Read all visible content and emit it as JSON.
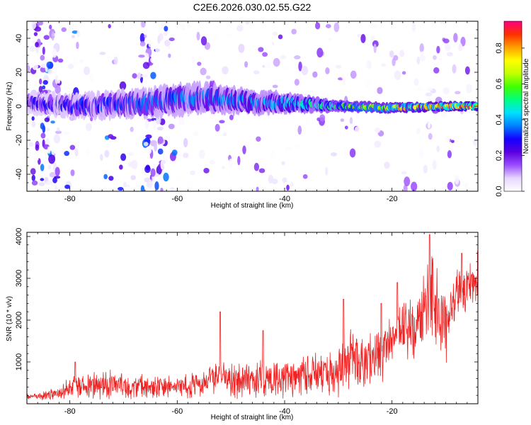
{
  "title": "C2E6.2026.030.02.55.G22",
  "chart_data": [
    {
      "type": "heatmap",
      "xlabel": "Height of straight line (km)",
      "ylabel": "Frequency (Hz)",
      "xlim": [
        -88,
        -4
      ],
      "ylim": [
        -50,
        50
      ],
      "xticks": [
        -80,
        -60,
        -40,
        -20
      ],
      "yticks": [
        -40,
        -20,
        0,
        20,
        40
      ],
      "colorbar": {
        "label": "Normalized spectral amplitude",
        "range": [
          0,
          0.95
        ],
        "ticks": [
          0.0,
          0.2,
          0.4,
          0.6,
          0.8
        ],
        "colormap": [
          "#ffffff",
          "#e6d6ff",
          "#9b4dff",
          "#5a00e0",
          "#1500ff",
          "#0080ff",
          "#00e0ff",
          "#00ff80",
          "#40ff00",
          "#c0ff00",
          "#ffff00",
          "#ffa000",
          "#ff3000",
          "#ff0080"
        ]
      },
      "ridge": {
        "center_hz": [
          [
            -88,
            2
          ],
          [
            -80,
            0
          ],
          [
            -70,
            1
          ],
          [
            -63,
            3
          ],
          [
            -55,
            5
          ],
          [
            -45,
            2
          ],
          [
            -40,
            2
          ],
          [
            -30,
            0
          ],
          [
            -20,
            -1
          ],
          [
            -10,
            0
          ],
          [
            -4,
            0
          ]
        ],
        "half_width_hz": [
          [
            -88,
            4
          ],
          [
            -60,
            6
          ],
          [
            -40,
            4
          ],
          [
            -30,
            2
          ],
          [
            -4,
            1.5
          ]
        ],
        "amplitude": [
          [
            -88,
            0.3
          ],
          [
            -60,
            0.4
          ],
          [
            -40,
            0.45
          ],
          [
            -30,
            0.6
          ],
          [
            -20,
            0.8
          ],
          [
            -4,
            0.95
          ]
        ]
      }
    },
    {
      "type": "line",
      "xlabel": "Height of straight line (km)",
      "ylabel": "SNR (10 * v/v)",
      "xlim": [
        -88,
        -4
      ],
      "ylim": [
        0,
        4100
      ],
      "xticks": [
        -80,
        -60,
        -40,
        -20
      ],
      "yticks": [
        1000,
        2000,
        3000,
        4000
      ],
      "color": "#ee2222",
      "series": [
        {
          "name": "SNR",
          "envelope": {
            "x": [
              -88,
              -82,
              -79,
              -77,
              -72,
              -65,
              -60,
              -55,
              -52,
              -50,
              -45,
              -40,
              -35,
              -30,
              -28,
              -25,
              -22,
              -20,
              -18,
              -16,
              -14,
              -13,
              -12,
              -10,
              -8,
              -6,
              -4
            ],
            "mean": [
              150,
              250,
              500,
              450,
              450,
              400,
              400,
              480,
              700,
              550,
              600,
              600,
              700,
              800,
              1100,
              900,
              1200,
              1500,
              1900,
              1800,
              2300,
              2500,
              2400,
              1800,
              2600,
              2800,
              2900
            ],
            "amplitude": [
              90,
              150,
              350,
              400,
              400,
              300,
              300,
              350,
              450,
              500,
              550,
              550,
              600,
              700,
              850,
              800,
              800,
              850,
              800,
              900,
              1100,
              1300,
              1100,
              900,
              700,
              600,
              600
            ]
          },
          "peaks": [
            [
              -79,
              1000
            ],
            [
              -52,
              2200
            ],
            [
              -44,
              1750
            ],
            [
              -29,
              2500
            ],
            [
              -22,
              2400
            ],
            [
              -19,
              2900
            ],
            [
              -13,
              4050
            ],
            [
              -7,
              3600
            ],
            [
              -4,
              3650
            ]
          ]
        }
      ]
    }
  ]
}
